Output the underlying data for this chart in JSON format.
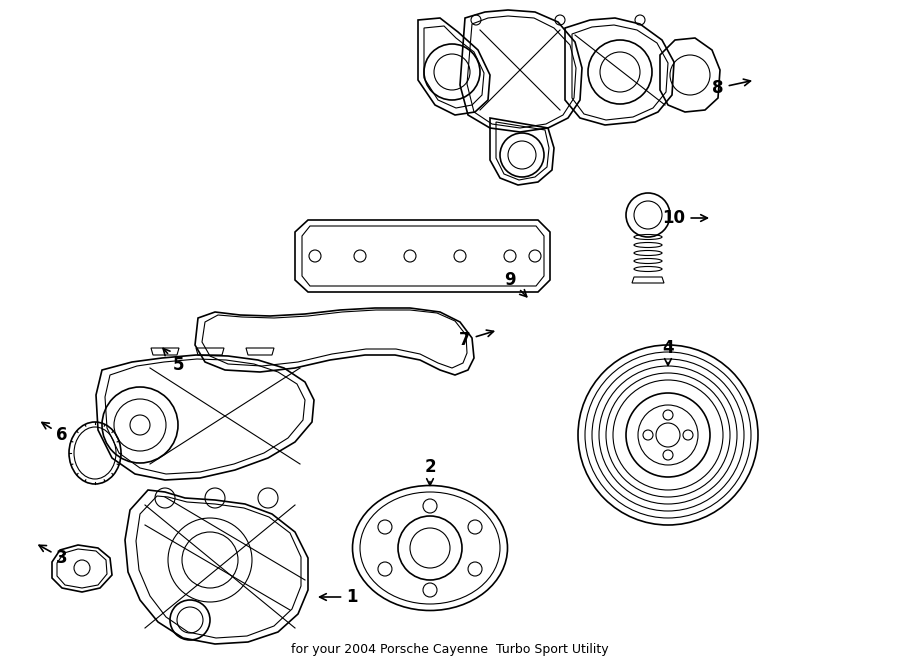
{
  "subtitle": "for your 2004 Porsche Cayenne  Turbo Sport Utility",
  "background_color": "#ffffff",
  "line_color": "#000000",
  "label_color": "#000000",
  "subtitle_fontsize": 9
}
